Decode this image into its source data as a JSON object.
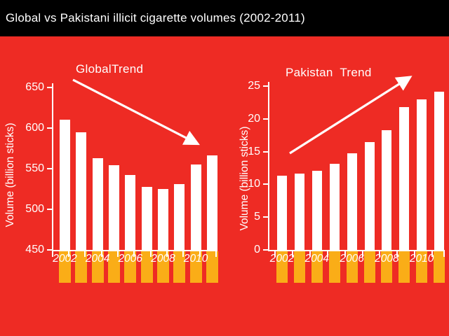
{
  "page": {
    "title": "Global vs Pakistani illicit cigarette volumes (2002-2011)"
  },
  "colors": {
    "background": "#EE2B24",
    "title_bar": "#000000",
    "bar": "#FFFFFF",
    "below_axis_bar": "#FAAD17",
    "text": "#FFFFFF"
  },
  "chart_data": [
    {
      "id": "global-trend",
      "type": "bar",
      "trend_label": "GlobalTrend",
      "trend_direction": "decreasing",
      "ylabel": "Volume (billion sticks)",
      "categories": [
        "2002",
        "2003",
        "2004",
        "2005",
        "2006",
        "2007",
        "2008",
        "2009",
        "2010",
        "2011"
      ],
      "values": [
        610,
        595,
        563,
        554,
        542,
        528,
        525,
        531,
        555,
        566
      ],
      "ylim": [
        450,
        650
      ],
      "yticks": [
        450,
        500,
        550,
        600,
        650
      ],
      "xtick_labels": [
        "2002",
        "2004",
        "2006",
        "2008",
        "2010"
      ],
      "legend": "none",
      "grid": false
    },
    {
      "id": "pakistan-trend",
      "type": "bar",
      "trend_label": "Pakistan  Trend",
      "trend_direction": "increasing",
      "ylabel": "Volume (billion sticks)",
      "categories": [
        "2002",
        "2003",
        "2004",
        "2005",
        "2006",
        "2007",
        "2008",
        "2009",
        "2010",
        "2011"
      ],
      "values": [
        11.3,
        11.6,
        12.1,
        13.1,
        14.7,
        16.4,
        18.3,
        21.8,
        23.0,
        24.1
      ],
      "ylim": [
        0,
        25
      ],
      "yticks": [
        0,
        5,
        10,
        15,
        20,
        25
      ],
      "xtick_labels": [
        "2002",
        "2004",
        "2006",
        "2008",
        "2010"
      ],
      "legend": "none",
      "grid": false
    }
  ]
}
